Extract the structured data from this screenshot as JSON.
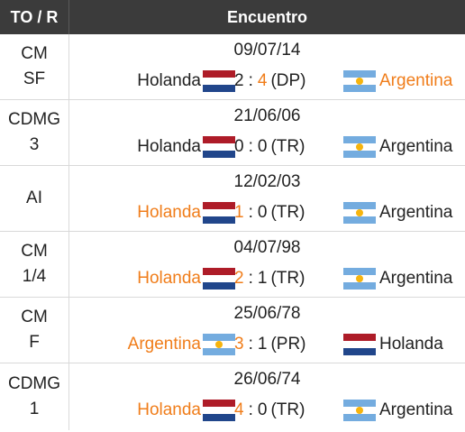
{
  "header": {
    "col1": "TO / R",
    "col2": "Encuentro"
  },
  "colors": {
    "winner": "#f07d1a",
    "header_bg": "#3b3b3b"
  },
  "rows": [
    {
      "comp1": "CM",
      "comp2": "SF",
      "date": "09/07/14",
      "home": "Holanda",
      "home_flag": "netherlands-flag",
      "home_win": false,
      "score_home": "2",
      "score_away": "4",
      "note": "(DP)",
      "away": "Argentina",
      "away_flag": "argentina-flag",
      "away_win": true
    },
    {
      "comp1": "CDMG",
      "comp2": "3",
      "date": "21/06/06",
      "home": "Holanda",
      "home_flag": "netherlands-flag",
      "home_win": false,
      "score_home": "0",
      "score_away": "0",
      "note": "(TR)",
      "away": "Argentina",
      "away_flag": "argentina-flag",
      "away_win": false
    },
    {
      "comp1": "AI",
      "comp2": "",
      "date": "12/02/03",
      "home": "Holanda",
      "home_flag": "netherlands-flag",
      "home_win": true,
      "score_home": "1",
      "score_away": "0",
      "note": "(TR)",
      "away": "Argentina",
      "away_flag": "argentina-flag",
      "away_win": false
    },
    {
      "comp1": "CM",
      "comp2": "1/4",
      "date": "04/07/98",
      "home": "Holanda",
      "home_flag": "netherlands-flag",
      "home_win": true,
      "score_home": "2",
      "score_away": "1",
      "note": "(TR)",
      "away": "Argentina",
      "away_flag": "argentina-flag",
      "away_win": false
    },
    {
      "comp1": "CM",
      "comp2": "F",
      "date": "25/06/78",
      "home": "Argentina",
      "home_flag": "argentina-flag",
      "home_win": true,
      "score_home": "3",
      "score_away": "1",
      "note": "(PR)",
      "away": "Holanda",
      "away_flag": "netherlands-flag",
      "away_win": false
    },
    {
      "comp1": "CDMG",
      "comp2": "1",
      "date": "26/06/74",
      "home": "Holanda",
      "home_flag": "netherlands-flag",
      "home_win": true,
      "score_home": "4",
      "score_away": "0",
      "note": "(TR)",
      "away": "Argentina",
      "away_flag": "argentina-flag",
      "away_win": false
    }
  ]
}
